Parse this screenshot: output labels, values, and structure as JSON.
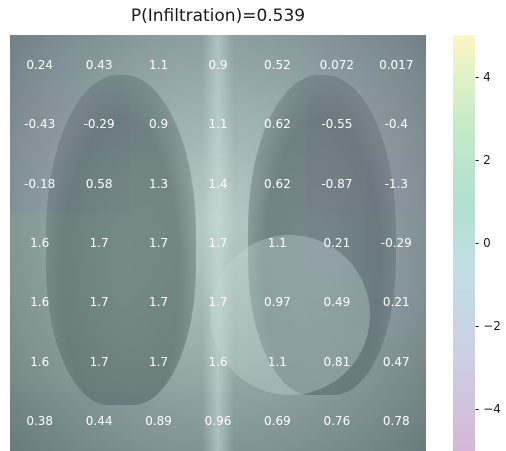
{
  "chart_data": {
    "type": "heatmap",
    "title": "P(Infiltration)=0.539",
    "rows": [
      [
        "0.24",
        "0.43",
        "1.1",
        "0.9",
        "0.52",
        "0.072",
        "0.017"
      ],
      [
        "-0.43",
        "-0.29",
        "0.9",
        "1.1",
        "0.62",
        "-0.55",
        "-0.4"
      ],
      [
        "-0.18",
        "0.58",
        "1.3",
        "1.4",
        "0.62",
        "-0.87",
        "-1.3"
      ],
      [
        "1.6",
        "1.7",
        "1.7",
        "1.7",
        "1.1",
        "0.21",
        "-0.29"
      ],
      [
        "1.6",
        "1.7",
        "1.7",
        "1.7",
        "0.97",
        "0.49",
        "0.21"
      ],
      [
        "1.6",
        "1.7",
        "1.7",
        "1.6",
        "1.1",
        "0.81",
        "0.47"
      ],
      [
        "0.38",
        "0.44",
        "0.89",
        "0.96",
        "0.69",
        "0.76",
        "0.78"
      ]
    ],
    "colorbar": {
      "range": [
        -5,
        5
      ],
      "ticks": [
        4,
        2,
        0,
        -2,
        -4
      ],
      "tick_labels": [
        "4",
        "2",
        "0",
        "−2",
        "−4"
      ],
      "colormap": [
        "#d4b8d6",
        "#cbd1e5",
        "#c1dfe2",
        "#b0e0cf",
        "#c8ebc8",
        "#fcf6c2"
      ]
    },
    "overlay_colors": {
      "negative": "#b4a6cf",
      "neutral": "#9fc3cc",
      "positive": "#9fe0bc"
    },
    "background": "chest x-ray"
  }
}
